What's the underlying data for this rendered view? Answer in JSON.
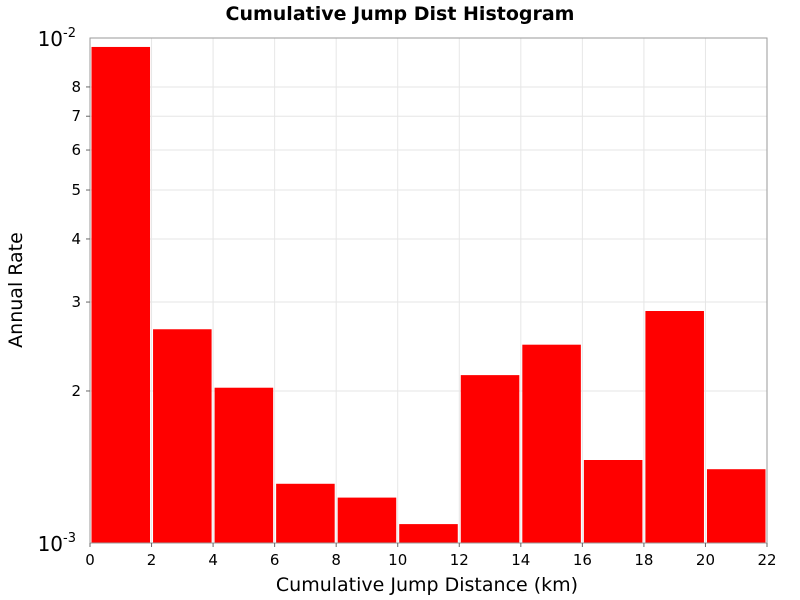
{
  "chart_data": {
    "type": "bar",
    "title": "Cumulative Jump Dist Histogram",
    "xlabel": "Cumulative Jump Distance (km)",
    "ylabel": "Annual Rate",
    "xlim": [
      0,
      22
    ],
    "ylim": [
      0.001,
      0.01
    ],
    "y_scale": "log",
    "grid": true,
    "bar_color": "#ff0000",
    "x_ticks": [
      "0",
      "2",
      "4",
      "6",
      "8",
      "10",
      "12",
      "14",
      "16",
      "18",
      "20",
      "22"
    ],
    "y_minor_ticks": [
      "2",
      "3",
      "4",
      "5",
      "6",
      "7",
      "8"
    ],
    "y_decade_labels": [
      {
        "base": "10",
        "exp": "-3"
      },
      {
        "base": "10",
        "exp": "-2"
      }
    ],
    "bins": [
      {
        "x_start": 0,
        "x_end": 2,
        "value": 0.0096
      },
      {
        "x_start": 2,
        "x_end": 4,
        "value": 0.00265
      },
      {
        "x_start": 4,
        "x_end": 6,
        "value": 0.00203
      },
      {
        "x_start": 6,
        "x_end": 8,
        "value": 0.00131
      },
      {
        "x_start": 8,
        "x_end": 10,
        "value": 0.00123
      },
      {
        "x_start": 10,
        "x_end": 12,
        "value": 0.00109
      },
      {
        "x_start": 12,
        "x_end": 14,
        "value": 0.00215
      },
      {
        "x_start": 14,
        "x_end": 16,
        "value": 0.00247
      },
      {
        "x_start": 16,
        "x_end": 18,
        "value": 0.00146
      },
      {
        "x_start": 18,
        "x_end": 20,
        "value": 0.00288
      },
      {
        "x_start": 20,
        "x_end": 22,
        "value": 0.0014
      }
    ]
  }
}
